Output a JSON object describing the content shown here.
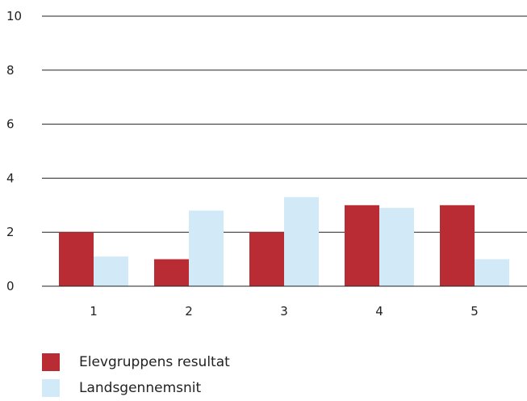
{
  "chart_data": {
    "type": "bar",
    "categories": [
      "1",
      "2",
      "3",
      "4",
      "5"
    ],
    "series": [
      {
        "name": "Elevgruppens resultat",
        "values": [
          2,
          1,
          2,
          3,
          3
        ],
        "color": "#b92c33"
      },
      {
        "name": "Landsgennemsnit",
        "values": [
          1.1,
          2.8,
          3.3,
          2.9,
          1.0
        ],
        "color": "#d2e9f7"
      }
    ],
    "y_ticks": [
      "0",
      "2",
      "4",
      "6",
      "8",
      "10"
    ],
    "ylim": [
      0,
      10
    ],
    "grid": true,
    "legend_position": "bottom-left",
    "title": "",
    "xlabel": "",
    "ylabel": ""
  }
}
